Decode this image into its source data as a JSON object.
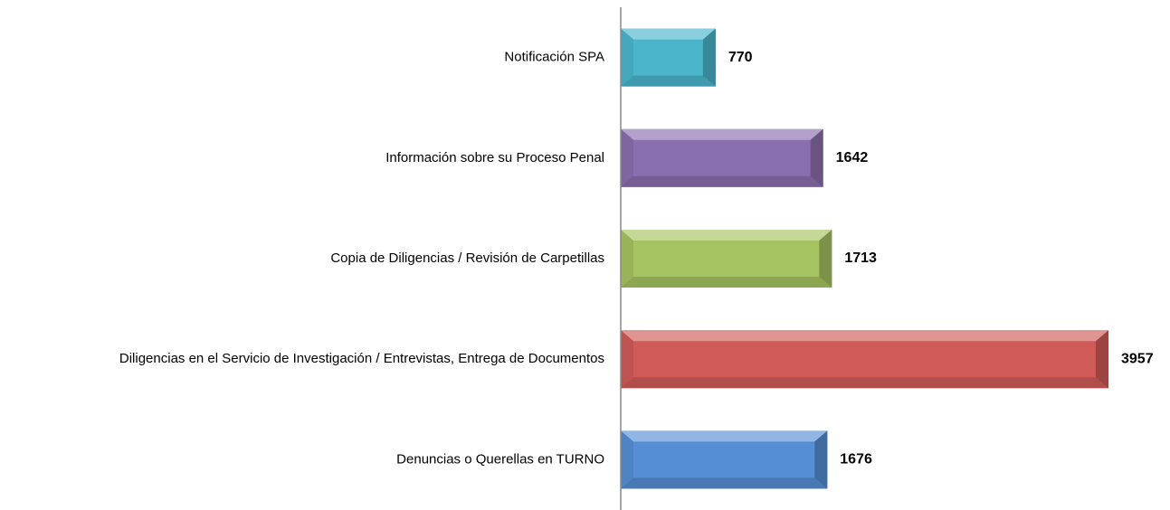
{
  "chart_data": {
    "type": "bar",
    "orientation": "horizontal",
    "categories": [
      "Notificación SPA",
      "Información sobre su Proceso Penal",
      "Copia de Diligencias / Revisión de Carpetillas",
      "Diligencias en el Servicio de Investigación / Entrevistas, Entrega de Documentos",
      "Denuncias o Querellas en TURNO"
    ],
    "values": [
      770,
      1642,
      1713,
      3957,
      1676
    ],
    "colors": [
      "#4bb5cc",
      "#8a6fae",
      "#a6c361",
      "#d05a58",
      "#558ed5"
    ]
  }
}
